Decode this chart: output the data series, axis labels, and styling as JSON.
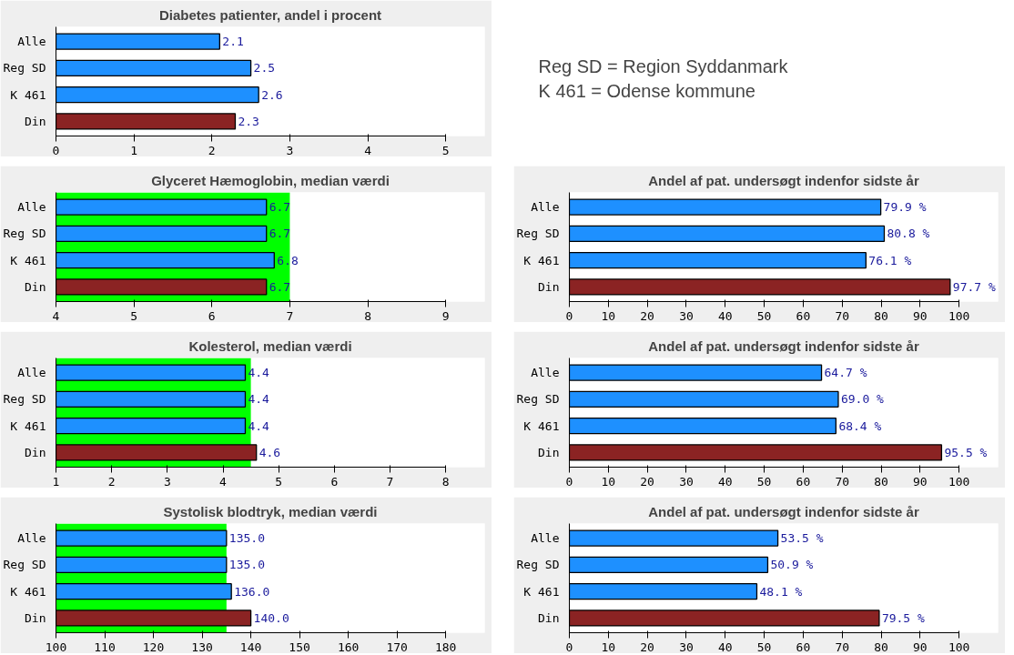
{
  "chart_data": [
    {
      "type": "bar",
      "orientation": "horizontal",
      "title": "Diabetes patienter, andel i procent",
      "categories": [
        "Alle",
        "Reg SD",
        "K 461",
        "Din"
      ],
      "values": [
        2.1,
        2.5,
        2.6,
        2.3
      ],
      "colors": [
        "#1e90ff",
        "#1e90ff",
        "#1e90ff",
        "#8b2323"
      ],
      "value_labels": [
        "2.1",
        "2.5",
        "2.6",
        "2.3"
      ],
      "xlim": [
        0,
        5
      ],
      "xticks": [
        0,
        1,
        2,
        3,
        4,
        5
      ],
      "grid": false
    },
    {
      "type": "other",
      "annotations": [
        "Reg SD = Region Syddanmark",
        "K 461 = Odense kommune"
      ]
    },
    {
      "type": "bar",
      "orientation": "horizontal",
      "title": "Glyceret Hæmoglobin, median værdi",
      "categories": [
        "Alle",
        "Reg SD",
        "K 461",
        "Din"
      ],
      "values": [
        6.7,
        6.7,
        6.8,
        6.7
      ],
      "colors": [
        "#1e90ff",
        "#1e90ff",
        "#1e90ff",
        "#8b2323"
      ],
      "value_labels": [
        "6.7",
        "6.7",
        "6.8",
        "6.7"
      ],
      "xlim": [
        4,
        9
      ],
      "xticks": [
        4,
        5,
        6,
        7,
        8,
        9
      ],
      "bands": [
        {
          "axis": "x",
          "from": 4,
          "to": 7,
          "color": "#00ff00"
        }
      ],
      "grid": false
    },
    {
      "type": "bar",
      "orientation": "horizontal",
      "title": "Andel af pat. undersøgt indenfor sidste år",
      "categories": [
        "Alle",
        "Reg SD",
        "K 461",
        "Din"
      ],
      "values": [
        79.9,
        80.8,
        76.1,
        97.7
      ],
      "colors": [
        "#1e90ff",
        "#1e90ff",
        "#1e90ff",
        "#8b2323"
      ],
      "value_labels": [
        "79.9 %",
        "80.8 %",
        "76.1 %",
        "97.7 %"
      ],
      "xlim": [
        0,
        100
      ],
      "xticks": [
        0,
        10,
        20,
        30,
        40,
        50,
        60,
        70,
        80,
        90,
        100
      ],
      "grid": false
    },
    {
      "type": "bar",
      "orientation": "horizontal",
      "title": "Kolesterol, median værdi",
      "categories": [
        "Alle",
        "Reg SD",
        "K 461",
        "Din"
      ],
      "values": [
        4.4,
        4.4,
        4.4,
        4.6
      ],
      "colors": [
        "#1e90ff",
        "#1e90ff",
        "#1e90ff",
        "#8b2323"
      ],
      "value_labels": [
        "4.4",
        "4.4",
        "4.4",
        "4.6"
      ],
      "xlim": [
        1,
        8
      ],
      "xticks": [
        1,
        2,
        3,
        4,
        5,
        6,
        7,
        8
      ],
      "bands": [
        {
          "axis": "x",
          "from": 1,
          "to": 4.5,
          "color": "#00ff00"
        }
      ],
      "grid": false
    },
    {
      "type": "bar",
      "orientation": "horizontal",
      "title": "Andel af pat. undersøgt indenfor sidste år",
      "categories": [
        "Alle",
        "Reg SD",
        "K 461",
        "Din"
      ],
      "values": [
        64.7,
        69.0,
        68.4,
        95.5
      ],
      "colors": [
        "#1e90ff",
        "#1e90ff",
        "#1e90ff",
        "#8b2323"
      ],
      "value_labels": [
        "64.7 %",
        "69.0 %",
        "68.4 %",
        "95.5 %"
      ],
      "xlim": [
        0,
        100
      ],
      "xticks": [
        0,
        10,
        20,
        30,
        40,
        50,
        60,
        70,
        80,
        90,
        100
      ],
      "grid": false
    },
    {
      "type": "bar",
      "orientation": "horizontal",
      "title": "Systolisk blodtryk, median værdi",
      "categories": [
        "Alle",
        "Reg SD",
        "K 461",
        "Din"
      ],
      "values": [
        135.0,
        135.0,
        136.0,
        140.0
      ],
      "colors": [
        "#1e90ff",
        "#1e90ff",
        "#1e90ff",
        "#8b2323"
      ],
      "value_labels": [
        "135.0",
        "135.0",
        "136.0",
        "140.0"
      ],
      "xlim": [
        100,
        180
      ],
      "xticks": [
        100,
        110,
        120,
        130,
        140,
        150,
        160,
        170,
        180
      ],
      "bands": [
        {
          "axis": "x",
          "from": 100,
          "to": 135,
          "color": "#00ff00"
        }
      ],
      "grid": false
    },
    {
      "type": "bar",
      "orientation": "horizontal",
      "title": "Andel af pat. undersøgt indenfor sidste år",
      "categories": [
        "Alle",
        "Reg SD",
        "K 461",
        "Din"
      ],
      "values": [
        53.5,
        50.9,
        48.1,
        79.5
      ],
      "colors": [
        "#1e90ff",
        "#1e90ff",
        "#1e90ff",
        "#8b2323"
      ],
      "value_labels": [
        "53.5 %",
        "50.9 %",
        "48.1 %",
        "79.5 %"
      ],
      "xlim": [
        0,
        100
      ],
      "xticks": [
        0,
        10,
        20,
        30,
        40,
        50,
        60,
        70,
        80,
        90,
        100
      ],
      "grid": false
    }
  ]
}
